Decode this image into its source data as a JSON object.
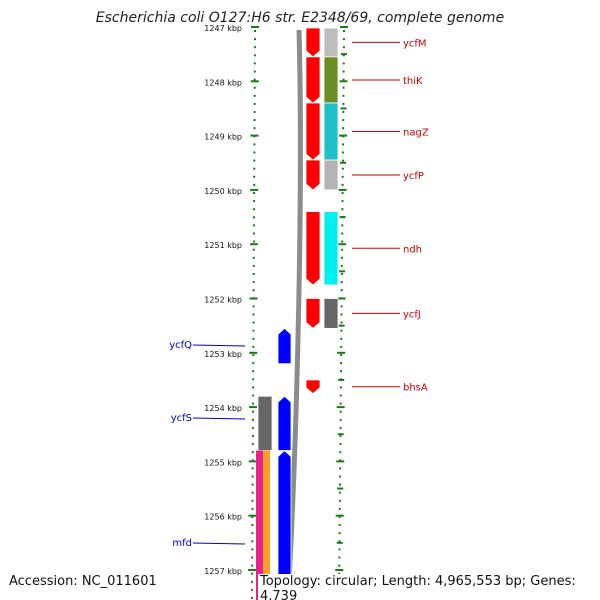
{
  "title": "Escherichia coli O127:H6 str. E2348/69, complete genome",
  "accession": "Accession: NC_011601",
  "summary": "Topology: circular; Length: 4,965,553 bp; Genes: 4,739",
  "ruler": {
    "labels": [
      "1247 kbp",
      "1248 kbp",
      "1249 kbp",
      "1250 kbp",
      "1251 kbp",
      "1252 kbp",
      "1253 kbp",
      "1254 kbp",
      "1255 kbp",
      "1256 kbp",
      "1257 kbp"
    ],
    "tick_color": "#1a7a1a"
  },
  "colors": {
    "forward_cds": "#ff0000",
    "reverse_cds": "#0000ff",
    "forward_label": "#cc0000",
    "reverse_label": "#0000cc",
    "backbone": "#8c8c8c",
    "magenta": "#e8208c",
    "orange": "#ffa020"
  },
  "forward_genes": [
    {
      "name": "ycfM",
      "start_kbp": 1246.9,
      "end_kbp": 1247.55,
      "class_color": "#bdbdbd"
    },
    {
      "name": "thiK",
      "start_kbp": 1247.55,
      "end_kbp": 1248.4,
      "class_color": "#6b8e23"
    },
    {
      "name": "nagZ",
      "start_kbp": 1248.4,
      "end_kbp": 1249.45,
      "class_color": "#20c0c8"
    },
    {
      "name": "ycfP",
      "start_kbp": 1249.45,
      "end_kbp": 1250.0,
      "class_color": "#b4b4b4"
    },
    {
      "name": "ndh",
      "start_kbp": 1250.4,
      "end_kbp": 1251.75,
      "class_color": "#00f0f0"
    },
    {
      "name": "ycfJ",
      "start_kbp": 1252.0,
      "end_kbp": 1252.55,
      "class_color": "#666666"
    },
    {
      "name": "bhsA",
      "start_kbp": 1253.5,
      "end_kbp": 1253.75,
      "class_color": ""
    }
  ],
  "reverse_genes": [
    {
      "name": "ycfQ",
      "start_kbp": 1252.55,
      "end_kbp": 1253.2,
      "class_color": ""
    },
    {
      "name": "ycfS",
      "start_kbp": 1253.8,
      "end_kbp": 1254.8,
      "class_color": "#666666"
    },
    {
      "name": "mfd",
      "start_kbp": 1254.8,
      "end_kbp": 1257.6,
      "class_color": ""
    }
  ]
}
